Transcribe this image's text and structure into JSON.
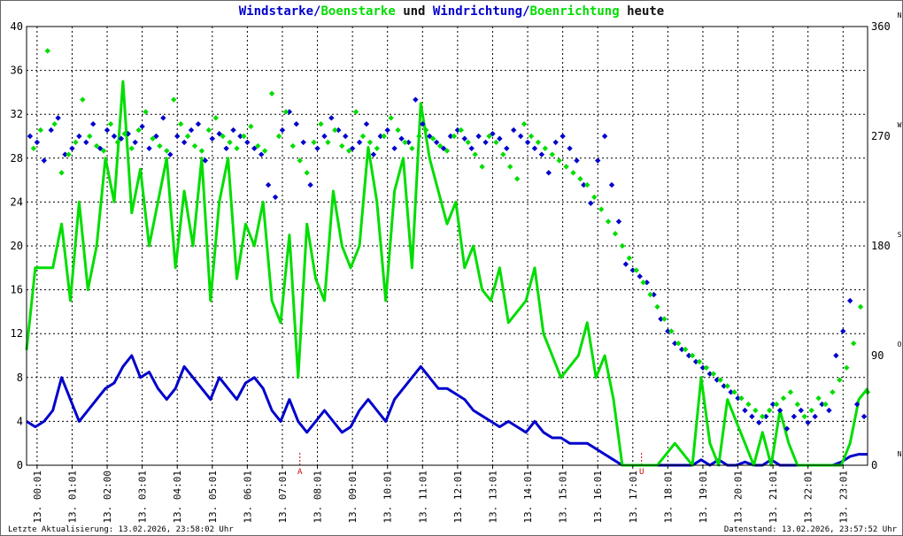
{
  "title": {
    "part1": "Windstarke/",
    "part2": "Boenstarke",
    "part3": " und ",
    "part4": "Windrichtung/",
    "part5": "Boenrichtung",
    "part6": " heute"
  },
  "footer": {
    "left": "Letzte Aktualisierung: 13.02.2026, 23:58:02 Uhr",
    "right": "Datenstand: 13.02.2026, 23:57:52 Uhr"
  },
  "colors": {
    "wind": "#0000cc",
    "gust": "#00dd00",
    "grid": "#000000",
    "marker": "#cc0000",
    "title": "#111111"
  },
  "chart_data": {
    "type": "line",
    "ylim": [
      0,
      40
    ],
    "y2lim": [
      0,
      360
    ],
    "yticks": [
      "0",
      "4",
      "8",
      "12",
      "16",
      "20",
      "24",
      "28",
      "32",
      "36",
      "40"
    ],
    "y2ticks": [
      "0",
      "90",
      "180",
      "270",
      "360"
    ],
    "y2letters": [
      "N",
      "O",
      "S",
      "W",
      "N"
    ],
    "xlim": [
      0,
      24
    ],
    "xticks": [
      "13. 00:01",
      "13. 01:01",
      "13. 02:00",
      "13. 03:01",
      "13. 04:01",
      "13. 05:01",
      "13. 06:01",
      "13. 07:01",
      "13. 08:01",
      "13. 09:01",
      "13. 10:01",
      "13. 11:01",
      "13. 12:01",
      "13. 13:01",
      "13. 14:01",
      "13. 15:01",
      "13. 16:01",
      "13. 17:01",
      "13. 18:01",
      "13. 19:01",
      "13. 20:01",
      "13. 21:01",
      "13. 22:01",
      "13. 23:01"
    ],
    "markers": [
      {
        "x": 7.8,
        "label": "A"
      },
      {
        "x": 17.55,
        "label": "U"
      }
    ],
    "series": [
      {
        "name": "Windstarke",
        "kind": "line",
        "x": [
          0,
          0.25,
          0.5,
          0.75,
          1,
          1.25,
          1.5,
          1.75,
          2,
          2.25,
          2.5,
          2.75,
          3,
          3.25,
          3.5,
          3.75,
          4,
          4.25,
          4.5,
          4.75,
          5,
          5.25,
          5.5,
          5.75,
          6,
          6.25,
          6.5,
          6.75,
          7,
          7.25,
          7.5,
          7.75,
          8,
          8.25,
          8.5,
          8.75,
          9,
          9.25,
          9.5,
          9.75,
          10,
          10.25,
          10.5,
          10.75,
          11,
          11.25,
          11.5,
          11.75,
          12,
          12.25,
          12.5,
          12.75,
          13,
          13.25,
          13.5,
          13.75,
          14,
          14.25,
          14.5,
          14.75,
          15,
          15.25,
          15.5,
          15.75,
          16,
          16.25,
          16.5,
          16.75,
          17,
          17.5,
          18,
          18.5,
          19,
          19.25,
          19.5,
          19.75,
          20,
          20.25,
          20.5,
          20.75,
          21,
          21.25,
          21.5,
          21.75,
          22,
          22.5,
          23,
          23.25,
          23.5,
          23.75,
          24
        ],
        "values": [
          4,
          3.5,
          4,
          5,
          8,
          6,
          4,
          5,
          6,
          7,
          7.5,
          9,
          10,
          8,
          8.5,
          7,
          6,
          7,
          9,
          8,
          7,
          6,
          8,
          7,
          6,
          7.5,
          8,
          7,
          5,
          4,
          6,
          4,
          3,
          4,
          5,
          4,
          3,
          3.5,
          5,
          6,
          5,
          4,
          6,
          7,
          8,
          9,
          8,
          7,
          7,
          6.5,
          6,
          5,
          4.5,
          4,
          3.5,
          4,
          3.5,
          3,
          4,
          3,
          2.5,
          2.5,
          2,
          2,
          2,
          1.5,
          1,
          0.5,
          0,
          0,
          0,
          0,
          0,
          0.5,
          0,
          0.5,
          0,
          0,
          0.3,
          0,
          0,
          0.5,
          0,
          0,
          0,
          0,
          0,
          0.3,
          0.8,
          1,
          1
        ]
      },
      {
        "name": "Boenstarke",
        "kind": "line",
        "x": [
          0,
          0.25,
          0.5,
          0.75,
          1,
          1.25,
          1.5,
          1.75,
          2,
          2.25,
          2.5,
          2.75,
          3,
          3.25,
          3.5,
          3.75,
          4,
          4.25,
          4.5,
          4.75,
          5,
          5.25,
          5.5,
          5.75,
          6,
          6.25,
          6.5,
          6.75,
          7,
          7.25,
          7.5,
          7.75,
          8,
          8.25,
          8.5,
          8.75,
          9,
          9.25,
          9.5,
          9.75,
          10,
          10.25,
          10.5,
          10.75,
          11,
          11.25,
          11.5,
          11.75,
          12,
          12.25,
          12.5,
          12.75,
          13,
          13.25,
          13.5,
          13.75,
          14,
          14.25,
          14.5,
          14.75,
          15,
          15.25,
          15.5,
          15.75,
          16,
          16.25,
          16.5,
          16.75,
          17,
          17.5,
          18,
          18.5,
          19,
          19.25,
          19.5,
          19.75,
          20,
          20.25,
          20.5,
          20.75,
          21,
          21.25,
          21.5,
          21.75,
          22,
          22.5,
          23,
          23.25,
          23.5,
          23.75,
          24
        ],
        "values": [
          10.5,
          18,
          18,
          18,
          22,
          15,
          24,
          16,
          20,
          28,
          24,
          35,
          23,
          27,
          20,
          24,
          28,
          18,
          25,
          20,
          28,
          15,
          24,
          28,
          17,
          22,
          20,
          24,
          15,
          13,
          21,
          8,
          22,
          17,
          15,
          25,
          20,
          18,
          20,
          29,
          24,
          15,
          25,
          28,
          18,
          33,
          28,
          25,
          22,
          24,
          18,
          20,
          16,
          15,
          18,
          13,
          14,
          15,
          18,
          12,
          10,
          8,
          9,
          10,
          13,
          8,
          10,
          6,
          0,
          0,
          0,
          2,
          0,
          8,
          2,
          0,
          6,
          4,
          2,
          0,
          3,
          0,
          5,
          2,
          0,
          0,
          0,
          0,
          2,
          6,
          7
        ]
      },
      {
        "name": "Windrichtung",
        "kind": "scatter",
        "x": [
          0.1,
          0.3,
          0.5,
          0.7,
          0.9,
          1.1,
          1.3,
          1.5,
          1.7,
          1.9,
          2.1,
          2.3,
          2.5,
          2.7,
          2.9,
          3.1,
          3.3,
          3.5,
          3.7,
          3.9,
          4.1,
          4.3,
          4.5,
          4.7,
          4.9,
          5.1,
          5.3,
          5.5,
          5.7,
          5.9,
          6.1,
          6.3,
          6.5,
          6.7,
          6.9,
          7.1,
          7.3,
          7.5,
          7.7,
          7.9,
          8.1,
          8.3,
          8.5,
          8.7,
          8.9,
          9.1,
          9.3,
          9.5,
          9.7,
          9.9,
          10.1,
          10.3,
          10.5,
          10.7,
          10.9,
          11.1,
          11.3,
          11.5,
          11.7,
          11.9,
          12.1,
          12.3,
          12.5,
          12.7,
          12.9,
          13.1,
          13.3,
          13.5,
          13.7,
          13.9,
          14.1,
          14.3,
          14.5,
          14.7,
          14.9,
          15.1,
          15.3,
          15.5,
          15.7,
          15.9,
          16.1,
          16.3,
          16.5,
          16.7,
          16.9,
          17.1,
          17.3,
          17.5,
          17.7,
          17.9,
          18.1,
          18.3,
          18.5,
          18.7,
          18.9,
          19.1,
          19.3,
          19.5,
          19.7,
          19.9,
          20.1,
          20.3,
          20.5,
          20.7,
          20.9,
          21.1,
          21.3,
          21.5,
          21.7,
          21.9,
          22.1,
          22.3,
          22.5,
          22.7,
          22.9,
          23.1,
          23.3,
          23.5,
          23.7,
          23.9
        ],
        "values": [
          270,
          265,
          250,
          275,
          285,
          255,
          260,
          270,
          265,
          280,
          260,
          275,
          270,
          268,
          272,
          265,
          278,
          260,
          270,
          285,
          255,
          270,
          265,
          275,
          280,
          250,
          268,
          272,
          260,
          275,
          270,
          265,
          260,
          255,
          230,
          220,
          275,
          290,
          280,
          265,
          230,
          260,
          270,
          285,
          275,
          270,
          260,
          265,
          280,
          255,
          270,
          275,
          260,
          268,
          265,
          300,
          280,
          270,
          265,
          260,
          270,
          275,
          268,
          260,
          270,
          265,
          272,
          268,
          260,
          275,
          270,
          265,
          260,
          255,
          240,
          265,
          270,
          260,
          250,
          230,
          215,
          250,
          270,
          230,
          200,
          165,
          160,
          155,
          150,
          140,
          120,
          110,
          100,
          95,
          90,
          85,
          80,
          75,
          70,
          65,
          60,
          55,
          45,
          40,
          35,
          40,
          50,
          45,
          30,
          40,
          45,
          35,
          40,
          50,
          45,
          90,
          110,
          135,
          50,
          40
        ]
      },
      {
        "name": "Boenrichtung",
        "kind": "scatter",
        "x": [
          0.2,
          0.4,
          0.6,
          0.8,
          1.0,
          1.2,
          1.4,
          1.6,
          1.8,
          2.0,
          2.2,
          2.4,
          2.6,
          2.8,
          3.0,
          3.2,
          3.4,
          3.6,
          3.8,
          4.0,
          4.2,
          4.4,
          4.6,
          4.8,
          5.0,
          5.2,
          5.4,
          5.6,
          5.8,
          6.0,
          6.2,
          6.4,
          6.6,
          6.8,
          7.0,
          7.2,
          7.4,
          7.6,
          7.8,
          8.0,
          8.2,
          8.4,
          8.6,
          8.8,
          9.0,
          9.2,
          9.4,
          9.6,
          9.8,
          10.0,
          10.2,
          10.4,
          10.6,
          10.8,
          11.0,
          11.2,
          11.4,
          11.6,
          11.8,
          12.0,
          12.2,
          12.4,
          12.6,
          12.8,
          13.0,
          13.2,
          13.4,
          13.6,
          13.8,
          14.0,
          14.2,
          14.4,
          14.6,
          14.8,
          15.0,
          15.2,
          15.4,
          15.6,
          15.8,
          16.0,
          16.2,
          16.4,
          16.6,
          16.8,
          17.0,
          17.2,
          17.4,
          17.6,
          17.8,
          18.0,
          18.2,
          18.4,
          18.6,
          18.8,
          19.0,
          19.2,
          19.4,
          19.6,
          19.8,
          20.0,
          20.2,
          20.4,
          20.6,
          20.8,
          21.0,
          21.2,
          21.4,
          21.6,
          21.8,
          22.0,
          22.2,
          22.4,
          22.6,
          22.8,
          23.0,
          23.2,
          23.4,
          23.6,
          23.8,
          24.0
        ],
        "values": [
          260,
          275,
          340,
          280,
          240,
          255,
          265,
          300,
          270,
          262,
          258,
          280,
          265,
          272,
          260,
          275,
          290,
          268,
          262,
          258,
          300,
          280,
          270,
          262,
          258,
          275,
          285,
          270,
          265,
          260,
          270,
          278,
          262,
          258,
          305,
          270,
          290,
          262,
          250,
          240,
          265,
          280,
          265,
          275,
          262,
          258,
          290,
          270,
          265,
          260,
          270,
          285,
          275,
          265,
          260,
          270,
          275,
          268,
          262,
          258,
          270,
          275,
          265,
          255,
          245,
          270,
          265,
          255,
          245,
          235,
          280,
          270,
          265,
          260,
          255,
          250,
          245,
          240,
          235,
          230,
          220,
          210,
          200,
          190,
          180,
          170,
          160,
          150,
          140,
          130,
          120,
          110,
          100,
          95,
          90,
          85,
          80,
          75,
          70,
          65,
          60,
          55,
          50,
          45,
          40,
          45,
          50,
          55,
          60,
          50,
          40,
          45,
          55,
          50,
          60,
          70,
          80,
          100,
          130,
          60
        ]
      }
    ]
  }
}
